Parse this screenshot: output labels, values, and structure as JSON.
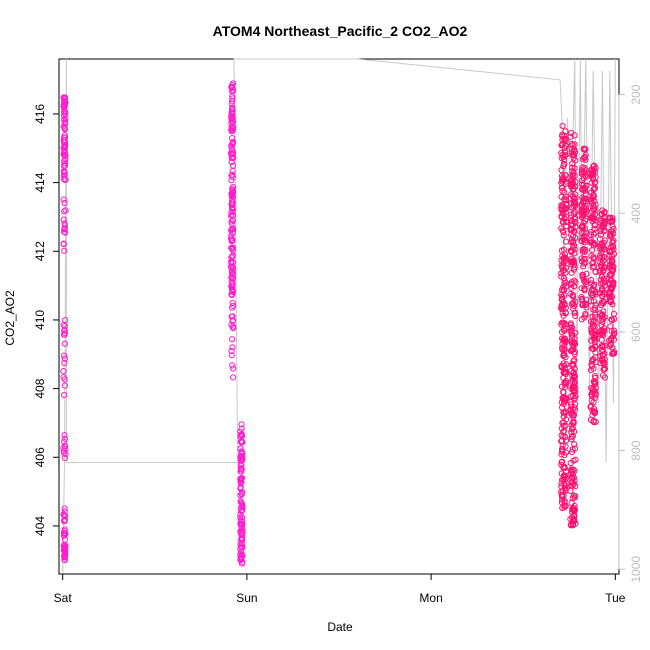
{
  "chart_data": {
    "type": "scatter",
    "title": "ATOM4 Northeast_Pacific_2 CO2_AO2",
    "xlabel": "Date",
    "ylabel": "CO2_AO2",
    "x_ticks": [
      "Sat",
      "Sun",
      "Mon",
      "Tue"
    ],
    "y_ticks": [
      404,
      406,
      408,
      410,
      412,
      414,
      416
    ],
    "y_right_ticks": [
      200,
      400,
      600,
      800,
      1000
    ],
    "xlim_days": [
      -0.02,
      3.02
    ],
    "ylim": [
      402.6,
      417.6
    ],
    "y_right_lim": [
      1008,
      140
    ],
    "y_right_reversed": true,
    "grid": false,
    "colors": {
      "points_early": "#ff1ecf",
      "points_late": "#ff1170",
      "pressure_line": "#c8c8c8",
      "axis": "#000000",
      "right_axis": "#bdbdbd"
    },
    "series": [
      {
        "clusters": [
          {
            "x": 0.01,
            "y_min": 403.0,
            "y_max": 403.9,
            "dense": true
          },
          {
            "x": 0.01,
            "y_min": 404.0,
            "y_max": 404.6,
            "dense": false
          },
          {
            "x": 0.01,
            "y_min": 405.5,
            "y_max": 406.7,
            "dense": false
          },
          {
            "x": 0.01,
            "y_min": 407.8,
            "y_max": 410.0,
            "dense": false
          },
          {
            "x": 0.01,
            "y_min": 412.0,
            "y_max": 413.7,
            "dense": false
          },
          {
            "x": 0.01,
            "y_min": 414.0,
            "y_max": 416.5,
            "dense": true
          },
          {
            "x": 0.92,
            "y_min": 410.7,
            "y_max": 416.9,
            "dense": true
          },
          {
            "x": 0.92,
            "y_min": 408.3,
            "y_max": 410.6,
            "dense": false
          },
          {
            "x": 0.97,
            "y_min": 402.9,
            "y_max": 407.1,
            "dense": true
          },
          {
            "x": 2.72,
            "y_min": 404.5,
            "y_max": 415.7,
            "dense": true
          },
          {
            "x": 2.77,
            "y_min": 404.0,
            "y_max": 415.5,
            "dense": true
          },
          {
            "x": 2.83,
            "y_min": 410.0,
            "y_max": 415.0,
            "dense": true
          },
          {
            "x": 2.88,
            "y_min": 407.0,
            "y_max": 414.5,
            "dense": true
          },
          {
            "x": 2.93,
            "y_min": 408.3,
            "y_max": 413.3,
            "dense": true
          },
          {
            "x": 2.98,
            "y_min": 409.0,
            "y_max": 413.0,
            "dense": true
          }
        ]
      }
    ],
    "pressure_line": [
      [
        0.0,
        1008
      ],
      [
        0.01,
        820
      ],
      [
        0.02,
        140
      ],
      [
        0.02,
        820
      ],
      [
        0.95,
        820
      ],
      [
        0.93,
        140
      ],
      [
        0.94,
        140
      ],
      [
        0.95,
        140
      ],
      [
        0.97,
        140
      ],
      [
        1.6,
        140
      ],
      [
        2.7,
        175
      ],
      [
        2.71,
        240
      ],
      [
        2.72,
        500
      ],
      [
        2.74,
        240
      ],
      [
        2.76,
        400
      ],
      [
        2.78,
        140
      ],
      [
        2.79,
        700
      ],
      [
        2.81,
        140
      ],
      [
        2.82,
        500
      ],
      [
        2.84,
        140
      ],
      [
        2.86,
        700
      ],
      [
        2.88,
        160
      ],
      [
        2.91,
        720
      ],
      [
        2.93,
        160
      ],
      [
        2.95,
        820
      ],
      [
        2.97,
        160
      ],
      [
        2.99,
        720
      ],
      [
        3.0,
        140
      ]
    ]
  }
}
